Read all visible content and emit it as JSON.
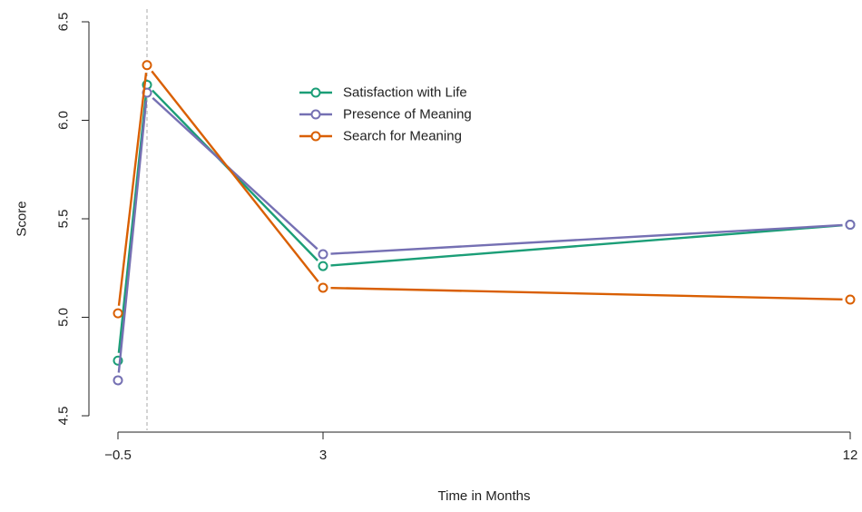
{
  "chart_data": {
    "type": "line",
    "title": "",
    "xlabel": "Time in Months",
    "ylabel": "Score",
    "ylim": [
      4.5,
      6.5
    ],
    "yticks": [
      "4.5",
      "5.0",
      "5.5",
      "6.0",
      "6.5"
    ],
    "x_tick_values": [
      -0.5,
      3,
      12
    ],
    "x_tick_labels": [
      "−0.5",
      "3",
      "12"
    ],
    "reference_line_x": 0,
    "grid": false,
    "legend_position": "top-center",
    "x": [
      -0.5,
      0,
      3,
      12
    ],
    "series": [
      {
        "name": "Satisfaction with Life",
        "color": "#1b9e77",
        "values": [
          4.78,
          6.18,
          5.26,
          5.47
        ]
      },
      {
        "name": "Presence of Meaning",
        "color": "#7570b3",
        "values": [
          4.68,
          6.14,
          5.32,
          5.47
        ]
      },
      {
        "name": "Search for Meaning",
        "color": "#d95f02",
        "values": [
          5.02,
          6.28,
          5.15,
          5.09
        ]
      }
    ]
  }
}
